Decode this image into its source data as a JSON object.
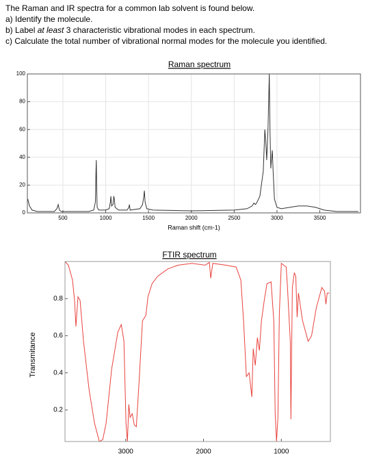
{
  "question": {
    "intro": "The Raman and IR spectra for a common lab solvent is found below.",
    "a": "a)  Identify the molecule.",
    "b": [
      "b)  Label ",
      "at least",
      " 3 characteristic vibrational modes in each spectrum."
    ],
    "c": "c)  Calculate the total number of vibrational normal modes for the molecule you identified."
  },
  "chart_data": [
    {
      "type": "line",
      "title": "Raman spectrum",
      "xlabel": "Raman shift (cm-1)",
      "grid": true,
      "xlim": [
        85,
        3975
      ],
      "ylim": [
        0,
        100
      ],
      "xticks": [
        500,
        1000,
        1500,
        2000,
        2500,
        3000,
        3500
      ],
      "yticks": [
        0,
        20,
        40,
        60,
        80,
        100
      ],
      "series": [
        {
          "color": "#333333",
          "x": [
            90,
            110,
            140,
            200,
            400,
            430,
            445,
            460,
            480,
            800,
            860,
            880,
            886,
            890,
            894,
            900,
            920,
            1000,
            1040,
            1055,
            1060,
            1068,
            1085,
            1095,
            1100,
            1110,
            1150,
            1250,
            1270,
            1277,
            1285,
            1400,
            1430,
            1445,
            1452,
            1460,
            1480,
            1550,
            2000,
            2500,
            2650,
            2710,
            2730,
            2750,
            2770,
            2800,
            2840,
            2858,
            2870,
            2880,
            2895,
            2910,
            2918,
            2928,
            2935,
            2945,
            2955,
            2970,
            3000,
            3050,
            3150,
            3250,
            3350,
            3450,
            3550,
            3700,
            3950
          ],
          "values": [
            10,
            5,
            2,
            1,
            1,
            3,
            6,
            2,
            1,
            1,
            2,
            8,
            30,
            38,
            20,
            4,
            2,
            2,
            3,
            8,
            12,
            5,
            6,
            12,
            10,
            4,
            2,
            2,
            4,
            6,
            2,
            3,
            6,
            12,
            16,
            8,
            3,
            2,
            1.5,
            2,
            3,
            5,
            7,
            6,
            8,
            12,
            30,
            60,
            50,
            38,
            60,
            100,
            60,
            32,
            38,
            45,
            30,
            10,
            4,
            3,
            4,
            5,
            5,
            4,
            2,
            1,
            1
          ]
        }
      ]
    },
    {
      "type": "line",
      "title": "FTIR spectrum",
      "ylabel": "Transmitance",
      "grid": false,
      "xlim": [
        3780,
        370
      ],
      "ylim": [
        0.03,
        1.0
      ],
      "xticks": [
        3000,
        2000,
        1000
      ],
      "yticks": [
        0.2,
        0.4,
        0.6,
        0.8
      ],
      "series": [
        {
          "color": "#e8413c",
          "x": [
            3780,
            3736,
            3683,
            3657,
            3639,
            3613,
            3586,
            3542,
            3471,
            3401,
            3339,
            3295,
            3251,
            3181,
            3101,
            3057,
            3022,
            2996,
            2978,
            2960,
            2943,
            2916,
            2890,
            2863,
            2828,
            2784,
            2740,
            2714,
            2661,
            2590,
            2458,
            2326,
            2150,
            1978,
            1925,
            1907,
            1881,
            1714,
            1581,
            1520,
            1485,
            1449,
            1414,
            1379,
            1361,
            1335,
            1308,
            1282,
            1256,
            1220,
            1185,
            1132,
            1097,
            1079,
            1062,
            1044,
            1026,
            1000,
            938,
            921,
            885,
            877,
            859,
            833,
            815,
            797,
            780,
            727,
            656,
            612,
            551,
            480,
            445,
            427,
            410,
            383
          ],
          "values": [
            1.0,
            0.98,
            0.9,
            0.79,
            0.65,
            0.81,
            0.79,
            0.57,
            0.31,
            0.13,
            0.03,
            0.04,
            0.13,
            0.42,
            0.62,
            0.66,
            0.57,
            0.13,
            0.03,
            0.23,
            0.16,
            0.18,
            0.12,
            0.11,
            0.35,
            0.68,
            0.71,
            0.81,
            0.88,
            0.92,
            0.96,
            0.98,
            0.99,
            0.98,
            0.995,
            0.91,
            0.99,
            0.98,
            0.97,
            0.9,
            0.68,
            0.38,
            0.4,
            0.27,
            0.53,
            0.44,
            0.59,
            0.52,
            0.68,
            0.79,
            0.88,
            0.89,
            0.68,
            0.18,
            0.03,
            0.16,
            0.72,
            0.99,
            0.97,
            0.86,
            0.57,
            0.15,
            0.86,
            0.94,
            0.92,
            0.7,
            0.83,
            0.68,
            0.57,
            0.6,
            0.75,
            0.86,
            0.84,
            0.77,
            0.83,
            0.83
          ]
        }
      ]
    }
  ]
}
